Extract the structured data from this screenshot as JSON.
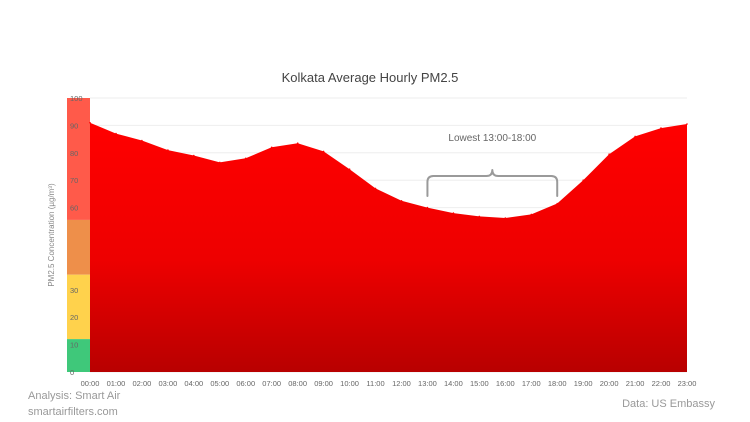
{
  "chart_data": {
    "type": "area",
    "title": "Kolkata Average Hourly PM2.5",
    "ylabel": "PM2.5 Concentration (µg/m³)",
    "xlabel": "",
    "ylim": [
      0,
      100
    ],
    "yticks": [
      {
        "value": 100,
        "label": "100"
      },
      {
        "value": 90,
        "label": "90"
      },
      {
        "value": 80,
        "label": "80"
      },
      {
        "value": 70,
        "label": "70"
      },
      {
        "value": 60,
        "label": "60"
      },
      {
        "value": 30,
        "label": "30"
      },
      {
        "value": 20,
        "label": "20"
      },
      {
        "value": 10,
        "label": "10"
      },
      {
        "value": 0,
        "label": "0"
      }
    ],
    "categories": [
      "00:00",
      "01:00",
      "02:00",
      "03:00",
      "04:00",
      "05:00",
      "06:00",
      "07:00",
      "08:00",
      "09:00",
      "10:00",
      "11:00",
      "12:00",
      "13:00",
      "14:00",
      "15:00",
      "16:00",
      "17:00",
      "18:00",
      "19:00",
      "20:00",
      "21:00",
      "22:00",
      "23:00"
    ],
    "values": [
      91,
      87,
      84.5,
      81,
      79,
      76.5,
      78,
      82,
      83.5,
      80.5,
      74,
      67,
      62.5,
      60,
      58,
      56.8,
      56.2,
      57.5,
      61.5,
      70,
      79.5,
      86,
      89,
      90.5
    ],
    "grid": true,
    "colors": {
      "area_top": "#ff0000",
      "area_bottom": "#b80000",
      "band_unhealthy": "#ff5a4a",
      "band_sensitive": "#ee8f4a",
      "band_moderate": "#ffd24c",
      "band_good": "#3fc87a"
    },
    "aqi_bands": [
      {
        "from": 55.5,
        "to": 100,
        "color": "#ff5a4a"
      },
      {
        "from": 35.5,
        "to": 55.5,
        "color": "#ee8f4a"
      },
      {
        "from": 12,
        "to": 35.5,
        "color": "#ffd24c"
      },
      {
        "from": 0,
        "to": 12,
        "color": "#3fc87a"
      }
    ],
    "annotation": {
      "text": "Lowest 13:00-18:00",
      "from": "13:00",
      "to": "18:00"
    }
  },
  "footer": {
    "analysis": "Analysis: Smart Air",
    "site": "smartairfilters.com",
    "source": "Data: US Embassy"
  }
}
